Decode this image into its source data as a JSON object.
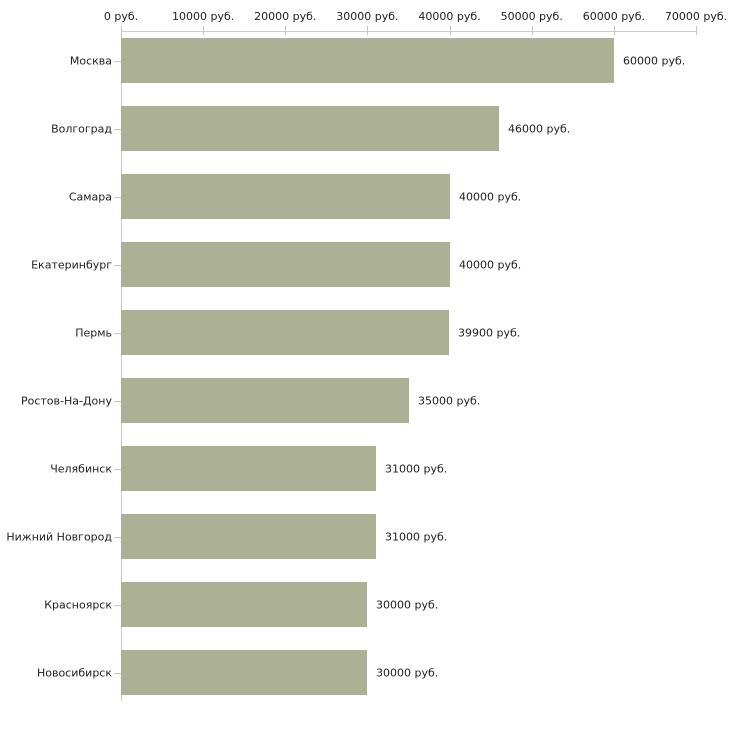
{
  "chart_data": {
    "type": "bar",
    "orientation": "horizontal",
    "title": "",
    "xlabel": "",
    "ylabel": "",
    "categories": [
      "Москва",
      "Волгоград",
      "Самара",
      "Екатеринбург",
      "Пермь",
      "Ростов-На-Дону",
      "Челябинск",
      "Нижний Новгород",
      "Красноярск",
      "Новосибирск"
    ],
    "values": [
      60000,
      46000,
      40000,
      40000,
      39900,
      35000,
      31000,
      31000,
      30000,
      30000
    ],
    "value_labels": [
      "60000 руб.",
      "46000 руб.",
      "40000 руб.",
      "40000 руб.",
      "39900 руб.",
      "35000 руб.",
      "31000 руб.",
      "31000 руб.",
      "30000 руб.",
      "30000 руб."
    ],
    "x_axis": {
      "position": "top",
      "min": 0,
      "max": 70000,
      "ticks": [
        0,
        10000,
        20000,
        30000,
        40000,
        50000,
        60000,
        70000
      ],
      "tick_labels": [
        "0 руб.",
        "10000 руб.",
        "20000 руб.",
        "30000 руб.",
        "40000 руб.",
        "50000 руб.",
        "60000 руб.",
        "70000 руб."
      ]
    },
    "grid": false,
    "legend": false,
    "colors": {
      "bar": "#acb196",
      "axis_line": "#cccccc",
      "tick_mark": "#c9c9a9",
      "text": "#222222",
      "background": "#ffffff"
    }
  }
}
